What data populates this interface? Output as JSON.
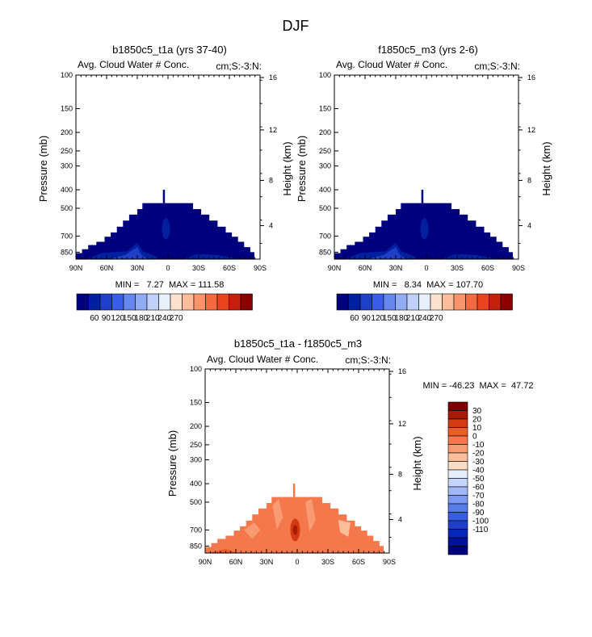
{
  "figure": {
    "title": "DJF"
  },
  "colors": {
    "abs_levels": [
      "#00007f",
      "#0020a0",
      "#1f3fc8",
      "#3a5de8",
      "#6686f0",
      "#92acf4",
      "#bfd1f8",
      "#e8f0fc",
      "#fde3cf",
      "#fcbd9a",
      "#f9936a",
      "#f46a40",
      "#e8441d",
      "#c5200e",
      "#8a0000"
    ],
    "diff_levels": [
      "#00007f",
      "#00129a",
      "#0626b7",
      "#1f3fcc",
      "#3a5ce2",
      "#5a7bea",
      "#7d98f0",
      "#a2b7f6",
      "#c6d5fa",
      "#e6eefc",
      "#fbdcc4",
      "#fbbd9a",
      "#f89a72",
      "#f4784b",
      "#ee5a28",
      "#d43a12",
      "#a51c05",
      "#7a0000"
    ]
  },
  "chart_data": [
    {
      "id": "model-a",
      "type": "heatmap",
      "title": "b1850c5_t1a (yrs 37-40)",
      "left_label": "Avg. Cloud Water # Conc.",
      "right_label": "cm;S:-3:N:",
      "ylabel": "Pressure (mb)",
      "y2label": "Height (km)",
      "x_ticks": [
        "90N",
        "60N",
        "30N",
        "0",
        "30S",
        "60S",
        "90S"
      ],
      "x_range": [
        90,
        -90
      ],
      "y_ticks": [
        "100",
        "150",
        "200",
        "250",
        "300",
        "400",
        "500",
        "700",
        "850"
      ],
      "y_range_mb": [
        100,
        925
      ],
      "height_ticks": [
        "16",
        "12",
        "8",
        "4"
      ],
      "min_max": "MIN =   7.27  MAX = 111.58",
      "colorbar_labels": [
        "60",
        "90",
        "120",
        "150",
        "180",
        "210",
        "240",
        "270"
      ],
      "shading": "cloud water concentration below ~400 mb, 30-100 cm-3"
    },
    {
      "id": "model-b",
      "type": "heatmap",
      "title": "f1850c5_m3 (yrs 2-6)",
      "left_label": "Avg. Cloud Water # Conc.",
      "right_label": "cm;S:-3:N:",
      "ylabel": "Pressure (mb)",
      "y2label": "Height (km)",
      "x_ticks": [
        "90N",
        "60N",
        "30N",
        "0",
        "30S",
        "60S",
        "90S"
      ],
      "x_range": [
        90,
        -90
      ],
      "y_ticks": [
        "100",
        "150",
        "200",
        "250",
        "300",
        "400",
        "500",
        "700",
        "850"
      ],
      "y_range_mb": [
        100,
        925
      ],
      "height_ticks": [
        "16",
        "12",
        "8",
        "4"
      ],
      "min_max": "MIN =   8.34  MAX = 107.70",
      "colorbar_labels": [
        "60",
        "90",
        "120",
        "150",
        "180",
        "210",
        "240",
        "270"
      ],
      "shading": "cloud water concentration below ~400 mb, 30-100 cm-3"
    },
    {
      "id": "difference",
      "type": "heatmap",
      "title": "b1850c5_t1a - f1850c5_m3",
      "left_label": "Avg. Cloud Water # Conc.",
      "right_label": "cm;S:-3:N:",
      "ylabel": "Pressure (mb)",
      "y2label": "Height (km)",
      "x_ticks": [
        "90N",
        "60N",
        "30N",
        "0",
        "30S",
        "60S",
        "90S"
      ],
      "x_range": [
        90,
        -90
      ],
      "y_ticks": [
        "100",
        "150",
        "200",
        "250",
        "300",
        "400",
        "500",
        "700",
        "850"
      ],
      "y_range_mb": [
        100,
        925
      ],
      "height_ticks": [
        "16",
        "12",
        "8",
        "4"
      ],
      "min_max": "MIN = -46.23  MAX =  47.72",
      "colorbar_labels": [
        "30",
        "20",
        "10",
        "0",
        "-10",
        "-20",
        "-30",
        "-40",
        "-50",
        "-60",
        "-70",
        "-80",
        "-90",
        "-100",
        "-110"
      ],
      "shading": "differences mostly between 0 and 20"
    }
  ]
}
